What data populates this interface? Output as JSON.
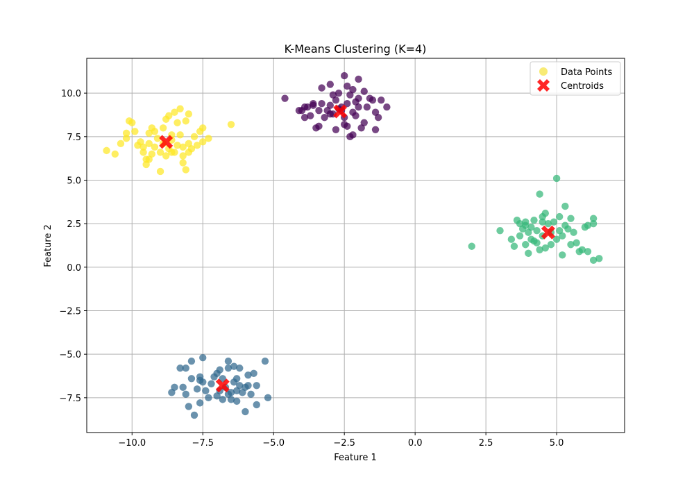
{
  "chart_data": {
    "type": "scatter",
    "title": "K-Means Clustering (K=4)",
    "xlabel": "Feature 1",
    "ylabel": "Feature 2",
    "xlim": [
      -11.6,
      7.4
    ],
    "ylim": [
      -9.5,
      12.0
    ],
    "grid": true,
    "legend_position": "top-right",
    "xticks": [
      -10.0,
      -7.5,
      -5.0,
      -2.5,
      0.0,
      2.5,
      5.0
    ],
    "xtick_labels": [
      "−10.0",
      "−7.5",
      "−5.0",
      "−2.5",
      "0.0",
      "2.5",
      "5.0"
    ],
    "yticks": [
      -7.5,
      -5.0,
      -2.5,
      0.0,
      2.5,
      5.0,
      7.5,
      10.0
    ],
    "ytick_labels": [
      "−7.5",
      "−5.0",
      "−2.5",
      "0.0",
      "2.5",
      "5.0",
      "7.5",
      "10.0"
    ],
    "legend": {
      "data_points_label": "Data Points",
      "centroids_label": "Centroids",
      "data_points_color": "#f5e33a",
      "centroids_color": "#ff0000"
    },
    "series": [
      {
        "color": "#440154",
        "points": [
          [
            -4.6,
            9.7
          ],
          [
            -4.0,
            9.0
          ],
          [
            -3.9,
            8.6
          ],
          [
            -3.8,
            9.2
          ],
          [
            -3.7,
            8.7
          ],
          [
            -3.6,
            9.3
          ],
          [
            -3.5,
            8.0
          ],
          [
            -3.4,
            8.1
          ],
          [
            -3.3,
            10.3
          ],
          [
            -3.3,
            9.4
          ],
          [
            -3.2,
            8.6
          ],
          [
            -3.1,
            9.0
          ],
          [
            -3.0,
            10.5
          ],
          [
            -3.0,
            9.3
          ],
          [
            -2.9,
            8.8
          ],
          [
            -2.8,
            9.6
          ],
          [
            -2.8,
            7.9
          ],
          [
            -2.7,
            10.0
          ],
          [
            -2.6,
            9.2
          ],
          [
            -2.5,
            11.0
          ],
          [
            -2.5,
            8.6
          ],
          [
            -2.4,
            8.1
          ],
          [
            -2.4,
            9.4
          ],
          [
            -2.3,
            9.9
          ],
          [
            -2.3,
            7.5
          ],
          [
            -2.2,
            10.2
          ],
          [
            -2.2,
            8.9
          ],
          [
            -2.1,
            9.5
          ],
          [
            -2.0,
            10.8
          ],
          [
            -2.0,
            9.2
          ],
          [
            -1.9,
            8.0
          ],
          [
            -1.8,
            10.1
          ],
          [
            -1.8,
            8.3
          ],
          [
            -1.7,
            9.2
          ],
          [
            -1.6,
            9.7
          ],
          [
            -1.5,
            9.6
          ],
          [
            -1.4,
            8.9
          ],
          [
            -1.3,
            8.6
          ],
          [
            -1.2,
            9.6
          ],
          [
            -1.0,
            9.2
          ],
          [
            -1.4,
            7.9
          ],
          [
            -2.2,
            7.6
          ],
          [
            -2.5,
            8.2
          ],
          [
            -3.6,
            9.4
          ],
          [
            -3.0,
            8.8
          ],
          [
            -2.7,
            9.1
          ],
          [
            -2.0,
            9.7
          ],
          [
            -3.9,
            9.2
          ],
          [
            -4.1,
            9.0
          ],
          [
            -2.6,
            9.0
          ],
          [
            -2.1,
            8.7
          ],
          [
            -3.4,
            9.0
          ],
          [
            -2.9,
            9.9
          ],
          [
            -2.4,
            10.4
          ]
        ]
      },
      {
        "color": "#31688e",
        "points": [
          [
            -8.6,
            -7.2
          ],
          [
            -8.5,
            -6.9
          ],
          [
            -8.3,
            -5.8
          ],
          [
            -8.2,
            -6.9
          ],
          [
            -8.1,
            -7.3
          ],
          [
            -8.0,
            -8.0
          ],
          [
            -7.9,
            -6.4
          ],
          [
            -7.9,
            -5.4
          ],
          [
            -7.8,
            -8.5
          ],
          [
            -7.7,
            -7.0
          ],
          [
            -7.6,
            -6.3
          ],
          [
            -7.6,
            -7.8
          ],
          [
            -7.5,
            -5.2
          ],
          [
            -7.5,
            -6.6
          ],
          [
            -7.4,
            -7.1
          ],
          [
            -7.3,
            -7.5
          ],
          [
            -7.2,
            -6.7
          ],
          [
            -7.1,
            -6.3
          ],
          [
            -7.0,
            -6.1
          ],
          [
            -7.0,
            -7.4
          ],
          [
            -6.9,
            -5.9
          ],
          [
            -6.8,
            -7.6
          ],
          [
            -6.8,
            -6.4
          ],
          [
            -6.7,
            -6.9
          ],
          [
            -6.6,
            -5.4
          ],
          [
            -6.6,
            -7.3
          ],
          [
            -6.5,
            -7.6
          ],
          [
            -6.4,
            -6.6
          ],
          [
            -6.4,
            -5.7
          ],
          [
            -6.3,
            -6.4
          ],
          [
            -6.3,
            -7.7
          ],
          [
            -6.2,
            -6.8
          ],
          [
            -6.1,
            -7.2
          ],
          [
            -6.0,
            -8.3
          ],
          [
            -6.0,
            -6.9
          ],
          [
            -5.9,
            -6.2
          ],
          [
            -5.8,
            -7.3
          ],
          [
            -5.7,
            -6.1
          ],
          [
            -5.6,
            -6.8
          ],
          [
            -5.6,
            -7.9
          ],
          [
            -5.3,
            -5.4
          ],
          [
            -5.2,
            -7.5
          ],
          [
            -6.2,
            -5.8
          ],
          [
            -6.6,
            -5.8
          ],
          [
            -7.6,
            -6.5
          ],
          [
            -8.1,
            -5.8
          ],
          [
            -6.9,
            -7.1
          ],
          [
            -6.5,
            -7.2
          ],
          [
            -5.9,
            -6.8
          ],
          [
            -6.3,
            -7.1
          ]
        ]
      },
      {
        "color": "#35b779",
        "points": [
          [
            2.0,
            1.2
          ],
          [
            3.0,
            2.1
          ],
          [
            3.4,
            1.6
          ],
          [
            3.5,
            1.2
          ],
          [
            3.6,
            2.7
          ],
          [
            3.7,
            2.5
          ],
          [
            3.7,
            1.8
          ],
          [
            3.8,
            2.2
          ],
          [
            3.9,
            2.6
          ],
          [
            3.9,
            1.3
          ],
          [
            4.0,
            0.8
          ],
          [
            4.0,
            2.0
          ],
          [
            4.1,
            1.6
          ],
          [
            4.1,
            2.3
          ],
          [
            4.2,
            2.7
          ],
          [
            4.3,
            1.4
          ],
          [
            4.3,
            2.1
          ],
          [
            4.4,
            4.2
          ],
          [
            4.4,
            1.0
          ],
          [
            4.5,
            2.6
          ],
          [
            4.5,
            1.8
          ],
          [
            4.6,
            3.1
          ],
          [
            4.6,
            1.1
          ],
          [
            4.7,
            2.5
          ],
          [
            4.8,
            1.3
          ],
          [
            4.8,
            2.0
          ],
          [
            4.9,
            2.6
          ],
          [
            5.0,
            5.1
          ],
          [
            5.0,
            1.6
          ],
          [
            5.1,
            2.1
          ],
          [
            5.1,
            2.9
          ],
          [
            5.2,
            0.7
          ],
          [
            5.2,
            1.8
          ],
          [
            5.3,
            3.5
          ],
          [
            5.3,
            2.4
          ],
          [
            5.4,
            2.2
          ],
          [
            5.5,
            1.3
          ],
          [
            5.5,
            2.8
          ],
          [
            5.6,
            2.0
          ],
          [
            5.7,
            1.4
          ],
          [
            5.8,
            0.9
          ],
          [
            5.9,
            1.0
          ],
          [
            6.0,
            2.3
          ],
          [
            6.1,
            0.9
          ],
          [
            6.1,
            2.4
          ],
          [
            6.3,
            2.5
          ],
          [
            6.3,
            2.8
          ],
          [
            6.3,
            0.4
          ],
          [
            6.5,
            0.5
          ],
          [
            3.9,
            2.4
          ],
          [
            4.5,
            2.9
          ],
          [
            4.2,
            1.5
          ]
        ]
      },
      {
        "color": "#fde725",
        "points": [
          [
            -10.9,
            6.7
          ],
          [
            -10.6,
            6.5
          ],
          [
            -10.4,
            7.1
          ],
          [
            -10.2,
            7.7
          ],
          [
            -10.2,
            7.4
          ],
          [
            -10.1,
            8.4
          ],
          [
            -10.0,
            8.3
          ],
          [
            -9.9,
            7.8
          ],
          [
            -9.7,
            7.2
          ],
          [
            -9.6,
            6.9
          ],
          [
            -9.5,
            6.2
          ],
          [
            -9.5,
            5.9
          ],
          [
            -9.4,
            7.1
          ],
          [
            -9.4,
            7.7
          ],
          [
            -9.3,
            8.0
          ],
          [
            -9.3,
            6.5
          ],
          [
            -9.2,
            6.9
          ],
          [
            -9.1,
            7.4
          ],
          [
            -9.0,
            5.5
          ],
          [
            -9.0,
            6.6
          ],
          [
            -8.9,
            7.1
          ],
          [
            -8.8,
            6.4
          ],
          [
            -8.8,
            8.5
          ],
          [
            -8.7,
            8.7
          ],
          [
            -8.6,
            7.6
          ],
          [
            -8.6,
            6.6
          ],
          [
            -8.5,
            8.9
          ],
          [
            -8.4,
            7.0
          ],
          [
            -8.4,
            8.3
          ],
          [
            -8.3,
            9.1
          ],
          [
            -8.3,
            7.6
          ],
          [
            -8.2,
            6.0
          ],
          [
            -8.2,
            6.9
          ],
          [
            -8.1,
            5.6
          ],
          [
            -8.1,
            8.4
          ],
          [
            -8.0,
            8.8
          ],
          [
            -8.0,
            7.1
          ],
          [
            -7.9,
            6.8
          ],
          [
            -7.8,
            7.5
          ],
          [
            -7.7,
            7.0
          ],
          [
            -7.6,
            7.8
          ],
          [
            -7.5,
            7.2
          ],
          [
            -7.5,
            8.0
          ],
          [
            -7.3,
            7.4
          ],
          [
            -6.5,
            8.2
          ],
          [
            -9.6,
            6.6
          ],
          [
            -8.7,
            6.8
          ],
          [
            -8.5,
            6.6
          ],
          [
            -9.2,
            7.8
          ],
          [
            -8.9,
            8.0
          ],
          [
            -8.2,
            6.4
          ],
          [
            -8.6,
            7.3
          ],
          [
            -9.8,
            7.0
          ],
          [
            -9.4,
            6.2
          ],
          [
            -8.0,
            6.6
          ]
        ]
      }
    ],
    "centroids": [
      {
        "x": -2.65,
        "y": 8.95
      },
      {
        "x": -6.8,
        "y": -6.8
      },
      {
        "x": 4.7,
        "y": 2.0
      },
      {
        "x": -8.8,
        "y": 7.2
      }
    ]
  }
}
